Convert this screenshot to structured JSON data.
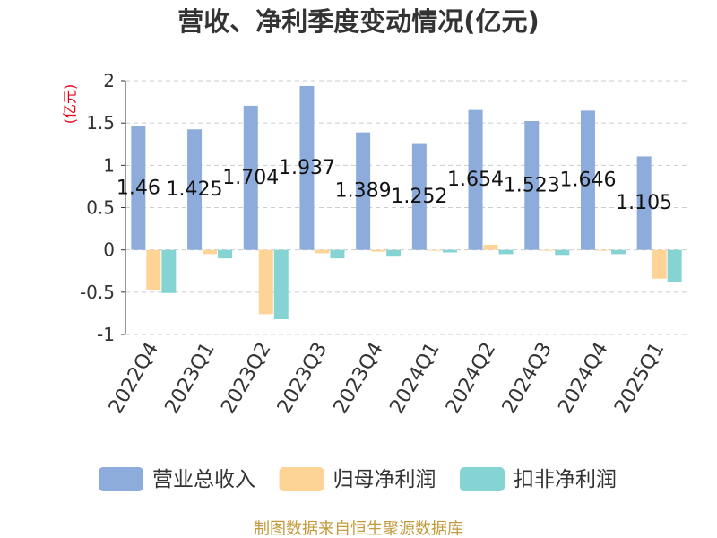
{
  "chart_data": {
    "type": "bar",
    "title": "营收、净利季度变动情况(亿元)",
    "ylabel": "(亿元)",
    "ylabel_color": "#e60012",
    "categories": [
      "2022Q4",
      "2023Q1",
      "2023Q2",
      "2023Q3",
      "2023Q4",
      "2024Q1",
      "2024Q2",
      "2024Q3",
      "2024Q4",
      "2025Q1"
    ],
    "ylim": [
      -1,
      2
    ],
    "yticks": [
      2,
      1.5,
      1,
      0.5,
      0,
      -0.5,
      -1
    ],
    "grid": true,
    "legend": "bottom",
    "series": [
      {
        "name": "营业总收入",
        "color": "#8eacdb",
        "show_value_labels": true,
        "values": [
          1.46,
          1.425,
          1.704,
          1.937,
          1.389,
          1.252,
          1.654,
          1.523,
          1.646,
          1.105
        ]
      },
      {
        "name": "归母净利润",
        "color": "#fdd495",
        "show_value_labels": false,
        "values": [
          -0.47,
          -0.05,
          -0.76,
          -0.04,
          -0.02,
          -0.01,
          0.06,
          -0.01,
          -0.01,
          -0.34
        ]
      },
      {
        "name": "扣非净利润",
        "color": "#85d3d3",
        "show_value_labels": false,
        "values": [
          -0.51,
          -0.1,
          -0.82,
          -0.1,
          -0.08,
          -0.03,
          -0.05,
          -0.06,
          -0.05,
          -0.38
        ]
      }
    ]
  },
  "footer": {
    "source": "制图数据来自恒生聚源数据库",
    "color": "#c39a3c"
  }
}
